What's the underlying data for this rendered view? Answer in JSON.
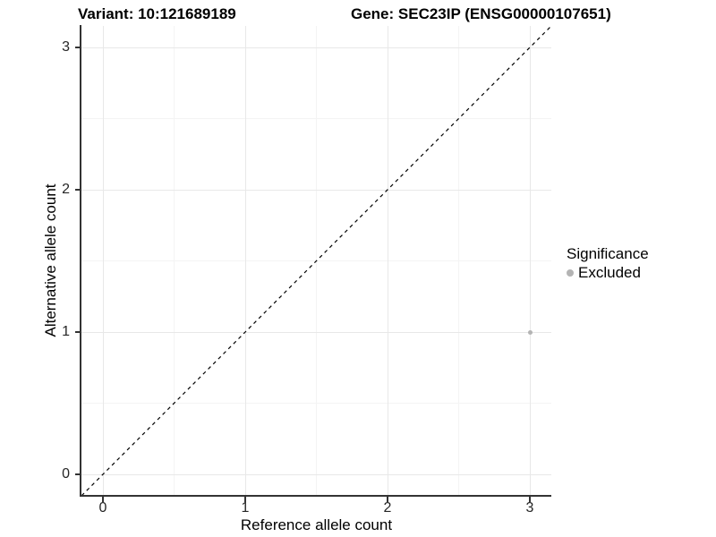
{
  "chart_data": {
    "type": "scatter",
    "title_left": "Variant: 10:121689189",
    "title_right": "Gene: SEC23IP (ENSG00000107651)",
    "xlabel": "Reference allele count",
    "ylabel": "Alternative allele count",
    "xlim": [
      -0.15,
      3.15
    ],
    "ylim": [
      -0.15,
      3.15
    ],
    "x_ticks": [
      0,
      1,
      2,
      3
    ],
    "y_ticks": [
      0,
      1,
      2,
      3
    ],
    "x_minor_ticks": [
      0.5,
      1.5,
      2.5
    ],
    "y_minor_ticks": [
      0.5,
      1.5,
      2.5
    ],
    "grid": "major and minor, light gray on white",
    "identity_line": {
      "style": "dashed",
      "color": "#000000",
      "from": [
        -0.15,
        -0.15
      ],
      "to": [
        3.15,
        3.15
      ]
    },
    "series": [
      {
        "name": "Excluded",
        "color": "#b4b4b4",
        "points": [
          {
            "x": 3,
            "y": 1
          }
        ]
      }
    ],
    "legend": {
      "title": "Significance",
      "position": "right",
      "items": [
        {
          "label": "Excluded",
          "color": "#b4b4b4"
        }
      ]
    }
  },
  "colors": {
    "background": "#ffffff",
    "major_grid": "#e8e8e8",
    "minor_grid": "#f4f4f4",
    "axis_line": "#333333",
    "text": "#000000",
    "excluded_point": "#b4b4b4"
  }
}
